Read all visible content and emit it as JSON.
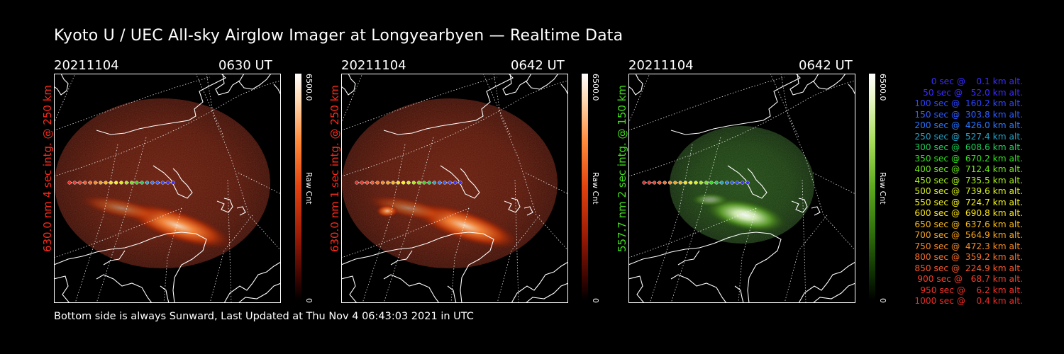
{
  "title": "Kyoto U / UEC All-sky Airglow Imager at Longyearbyen — Realtime Data",
  "footer": "Bottom side is always Sunward, Last Updated at Thu Nov  4 06:43:03 2021 in UTC",
  "panels": [
    {
      "date": "20211104",
      "time": "0630 UT",
      "ylabel": "630.0 nm 4 sec intg. @ 250 km",
      "cbar_max": "6500.0",
      "cbar_min": "0",
      "cbar_label": "Raw Cnt",
      "color_scheme": "red",
      "label_color": "#ff2a1a"
    },
    {
      "date": "20211104",
      "time": "0642 UT",
      "ylabel": "630.0 nm 1 sec intg. @ 250 km",
      "cbar_max": "6500.0",
      "cbar_min": "0",
      "cbar_label": "Raw Cnt",
      "color_scheme": "red",
      "label_color": "#ff2a1a"
    },
    {
      "date": "20211104",
      "time": "0642 UT",
      "ylabel": "557.7 nm 2 sec intg. @ 150 km",
      "cbar_max": "6500.0",
      "cbar_min": "0",
      "cbar_label": "Raw Cnt",
      "color_scheme": "green",
      "label_color": "#3ee01a"
    }
  ],
  "legend": [
    {
      "text": "0 sec @    0.1 km alt.",
      "color": "#3a2cff"
    },
    {
      "text": "50 sec @   52.0 km alt.",
      "color": "#3a2cff"
    },
    {
      "text": "100 sec @  160.2 km alt.",
      "color": "#2e46ff"
    },
    {
      "text": "150 sec @  303.8 km alt.",
      "color": "#2e5cff"
    },
    {
      "text": "200 sec @  426.0 km alt.",
      "color": "#2a76ff"
    },
    {
      "text": "250 sec @  527.4 km alt.",
      "color": "#22a0c4"
    },
    {
      "text": "300 sec @  608.6 km alt.",
      "color": "#1ccf5a"
    },
    {
      "text": "350 sec @  670.2 km alt.",
      "color": "#2fe01c"
    },
    {
      "text": "400 sec @  712.4 km alt.",
      "color": "#6fe61a"
    },
    {
      "text": "450 sec @  735.5 km alt.",
      "color": "#a6ec1c"
    },
    {
      "text": "500 sec @  739.6 km alt.",
      "color": "#d8f01e"
    },
    {
      "text": "550 sec @  724.7 km alt.",
      "color": "#f2f21c"
    },
    {
      "text": "600 sec @  690.8 km alt.",
      "color": "#f7e21a"
    },
    {
      "text": "650 sec @  637.6 km alt.",
      "color": "#f7ba1a"
    },
    {
      "text": "700 sec @  564.9 km alt.",
      "color": "#f5a41e"
    },
    {
      "text": "750 sec @  472.3 km alt.",
      "color": "#f58a22"
    },
    {
      "text": "800 sec @  359.2 km alt.",
      "color": "#f57028"
    },
    {
      "text": "850 sec @  224.9 km alt.",
      "color": "#f5582c"
    },
    {
      "text": "900 sec @   68.7 km alt.",
      "color": "#f2402a"
    },
    {
      "text": "950 sec @    6.2 km alt.",
      "color": "#f0322a"
    },
    {
      "text": "1000 sec @    0.4 km alt.",
      "color": "#ee2a24"
    }
  ]
}
